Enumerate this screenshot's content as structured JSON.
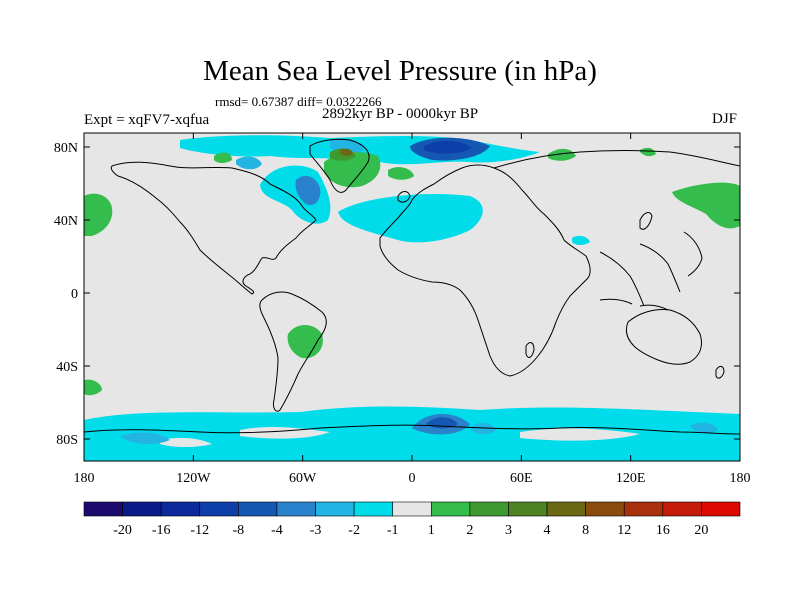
{
  "header": {
    "title": "Mean Sea Level Pressure (in hPa)",
    "stats": "rmsd= 0.67387 diff= 0.0322266",
    "experiment": "Expt = xqFV7-xqfua",
    "period": "2892kyr BP - 0000kyr BP",
    "season": "DJF"
  },
  "map": {
    "lat_ticks": [
      "80N",
      "40N",
      "0",
      "40S",
      "80S"
    ],
    "lon_ticks": [
      "180",
      "120W",
      "60W",
      "0",
      "60E",
      "120E",
      "180"
    ]
  },
  "colorbar": {
    "labels": [
      "-20",
      "-16",
      "-12",
      "-8",
      "-4",
      "-3",
      "-2",
      "-1",
      "1",
      "2",
      "3",
      "4",
      "8",
      "12",
      "16",
      "20"
    ],
    "colors": [
      "#1e0a6e",
      "#0a1a88",
      "#0c2a9c",
      "#0e3ea8",
      "#1458b4",
      "#2a82cc",
      "#22b4e2",
      "#00dcea",
      "#e6e6e6",
      "#34bc4c",
      "#3e9a30",
      "#4f8222",
      "#6a6812",
      "#8a4c0e",
      "#a8300c",
      "#c41a08",
      "#dc0a00"
    ]
  },
  "colors": {
    "land_bg": "#e6e6e6",
    "coast": "#000000"
  }
}
